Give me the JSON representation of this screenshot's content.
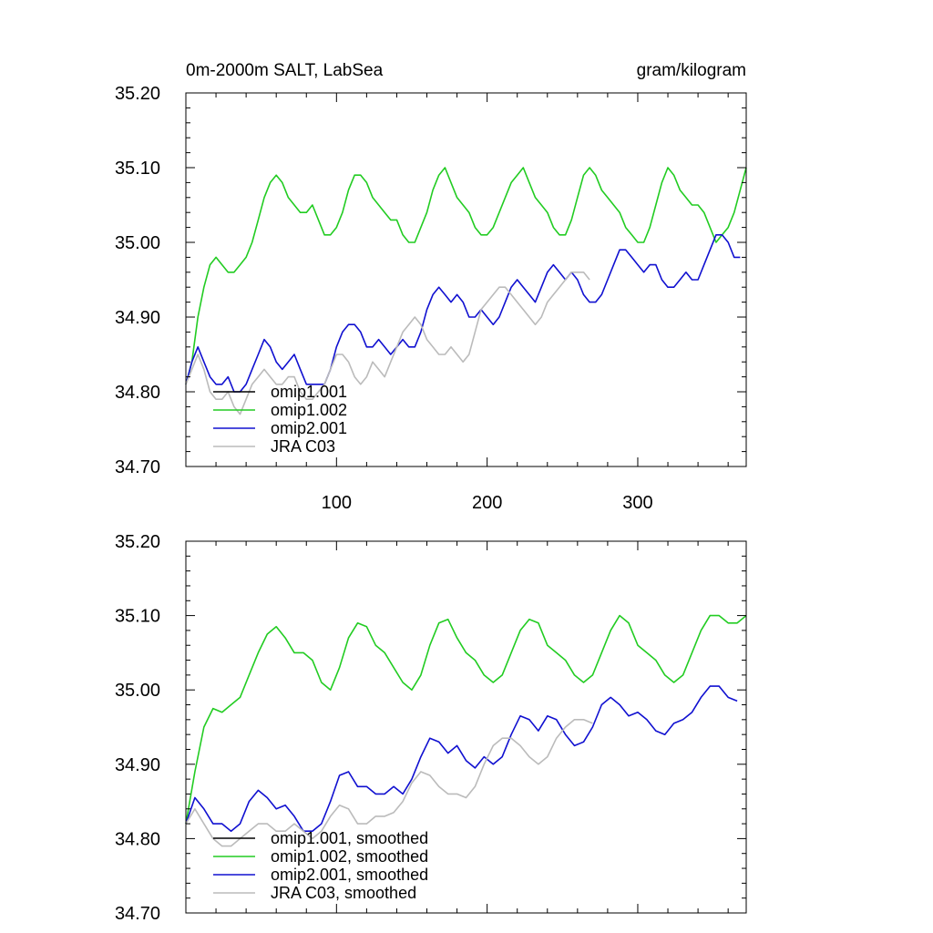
{
  "chart_data": [
    {
      "type": "line",
      "title_left": "0m-2000m SALT, LabSea",
      "title_right": "gram/kilogram",
      "xlim": [
        0,
        372
      ],
      "ylim": [
        34.7,
        35.2
      ],
      "y_ticks": [
        "34.70",
        "34.80",
        "34.90",
        "35.00",
        "35.10",
        "35.20"
      ],
      "x_ticks": [
        {
          "value": 100,
          "label": "100"
        },
        {
          "value": 200,
          "label": "200"
        },
        {
          "value": 300,
          "label": "300"
        }
      ],
      "legend": "bottom-left",
      "series": [
        {
          "name": "omip1.001",
          "color": "#000000",
          "x": [
            0
          ],
          "y": [
            34.8
          ]
        },
        {
          "name": "omip1.002",
          "color": "#22cc22",
          "x": [
            0,
            4,
            8,
            12,
            16,
            20,
            24,
            28,
            32,
            36,
            40,
            44,
            48,
            52,
            56,
            60,
            64,
            68,
            72,
            76,
            80,
            84,
            88,
            92,
            96,
            100,
            104,
            108,
            112,
            116,
            120,
            124,
            128,
            132,
            136,
            140,
            144,
            148,
            152,
            156,
            160,
            164,
            168,
            172,
            176,
            180,
            184,
            188,
            192,
            196,
            200,
            204,
            208,
            212,
            216,
            220,
            224,
            228,
            232,
            236,
            240,
            244,
            248,
            252,
            256,
            260,
            264,
            268,
            272,
            276,
            280,
            284,
            288,
            292,
            296,
            300,
            304,
            308,
            312,
            316,
            320,
            324,
            328,
            332,
            336,
            340,
            344,
            348,
            352,
            356,
            360,
            364,
            368,
            372
          ],
          "y": [
            34.81,
            34.84,
            34.9,
            34.94,
            34.97,
            34.98,
            34.97,
            34.96,
            34.96,
            34.97,
            34.98,
            35.0,
            35.03,
            35.06,
            35.08,
            35.09,
            35.08,
            35.06,
            35.05,
            35.04,
            35.04,
            35.05,
            35.03,
            35.01,
            35.01,
            35.02,
            35.04,
            35.07,
            35.09,
            35.09,
            35.08,
            35.06,
            35.05,
            35.04,
            35.03,
            35.03,
            35.01,
            35.0,
            35.0,
            35.02,
            35.04,
            35.07,
            35.09,
            35.1,
            35.08,
            35.06,
            35.05,
            35.04,
            35.02,
            35.01,
            35.01,
            35.02,
            35.04,
            35.06,
            35.08,
            35.09,
            35.1,
            35.08,
            35.06,
            35.05,
            35.04,
            35.02,
            35.01,
            35.01,
            35.03,
            35.06,
            35.09,
            35.1,
            35.09,
            35.07,
            35.06,
            35.05,
            35.04,
            35.02,
            35.01,
            35.0,
            35.0,
            35.02,
            35.05,
            35.08,
            35.1,
            35.09,
            35.07,
            35.06,
            35.05,
            35.05,
            35.04,
            35.02,
            35.0,
            35.01,
            35.02,
            35.04,
            35.07,
            35.1
          ]
        },
        {
          "name": "omip2.001",
          "color": "#1010d0",
          "x": [
            0,
            4,
            8,
            12,
            16,
            20,
            24,
            28,
            32,
            36,
            40,
            44,
            48,
            52,
            56,
            60,
            64,
            68,
            72,
            76,
            80,
            84,
            88,
            92,
            96,
            100,
            104,
            108,
            112,
            116,
            120,
            124,
            128,
            132,
            136,
            140,
            144,
            148,
            152,
            156,
            160,
            164,
            168,
            172,
            176,
            180,
            184,
            188,
            192,
            196,
            200,
            204,
            208,
            212,
            216,
            220,
            224,
            228,
            232,
            236,
            240,
            244,
            248,
            252,
            256,
            260,
            264,
            268,
            272,
            276,
            280,
            284,
            288,
            292,
            296,
            300,
            304,
            308,
            312,
            316,
            320,
            324,
            328,
            332,
            336,
            340,
            344,
            348,
            352,
            356,
            360,
            364,
            368
          ],
          "y": [
            34.81,
            34.84,
            34.86,
            34.84,
            34.82,
            34.81,
            34.81,
            34.82,
            34.8,
            34.8,
            34.81,
            34.83,
            34.85,
            34.87,
            34.86,
            34.84,
            34.83,
            34.84,
            34.85,
            34.83,
            34.81,
            34.81,
            34.81,
            34.81,
            34.83,
            34.86,
            34.88,
            34.89,
            34.89,
            34.88,
            34.86,
            34.86,
            34.87,
            34.86,
            34.85,
            34.86,
            34.87,
            34.86,
            34.86,
            34.88,
            34.91,
            34.93,
            34.94,
            34.93,
            34.92,
            34.93,
            34.92,
            34.9,
            34.9,
            34.91,
            34.9,
            34.89,
            34.9,
            34.92,
            34.94,
            34.95,
            34.94,
            34.93,
            34.92,
            34.94,
            34.96,
            34.97,
            34.96,
            34.95,
            34.96,
            34.95,
            34.93,
            34.92,
            34.92,
            34.93,
            34.95,
            34.97,
            34.99,
            34.99,
            34.98,
            34.97,
            34.96,
            34.97,
            34.97,
            34.95,
            34.94,
            34.94,
            34.95,
            34.96,
            34.95,
            34.95,
            34.97,
            34.99,
            35.01,
            35.01,
            35.0,
            34.98,
            34.98
          ]
        },
        {
          "name": "JRA C03",
          "color": "#bbbbbb",
          "x": [
            0,
            4,
            8,
            12,
            16,
            20,
            24,
            28,
            32,
            36,
            40,
            44,
            48,
            52,
            56,
            60,
            64,
            68,
            72,
            76,
            80,
            84,
            88,
            92,
            96,
            100,
            104,
            108,
            112,
            116,
            120,
            124,
            128,
            132,
            136,
            140,
            144,
            148,
            152,
            156,
            160,
            164,
            168,
            172,
            176,
            180,
            184,
            188,
            192,
            196,
            200,
            204,
            208,
            212,
            216,
            220,
            224,
            228,
            232,
            236,
            240,
            244,
            248,
            252,
            256,
            260,
            264,
            268
          ],
          "y": [
            34.81,
            34.83,
            34.85,
            34.83,
            34.8,
            34.79,
            34.79,
            34.8,
            34.78,
            34.77,
            34.79,
            34.81,
            34.82,
            34.83,
            34.82,
            34.81,
            34.81,
            34.82,
            34.82,
            34.8,
            34.79,
            34.79,
            34.8,
            34.81,
            34.83,
            34.85,
            34.85,
            34.84,
            34.82,
            34.81,
            34.82,
            34.84,
            34.83,
            34.82,
            34.84,
            34.86,
            34.88,
            34.89,
            34.9,
            34.89,
            34.87,
            34.86,
            34.85,
            34.85,
            34.86,
            34.85,
            34.84,
            34.85,
            34.88,
            34.91,
            34.92,
            34.93,
            34.94,
            34.94,
            34.93,
            34.92,
            34.91,
            34.9,
            34.89,
            34.9,
            34.92,
            34.93,
            34.94,
            34.95,
            34.96,
            34.96,
            34.96,
            34.95
          ]
        }
      ]
    },
    {
      "type": "line",
      "xlim": [
        0,
        372
      ],
      "ylim": [
        34.7,
        35.2
      ],
      "y_ticks": [
        "34.70",
        "34.80",
        "34.90",
        "35.00",
        "35.10",
        "35.20"
      ],
      "legend": "bottom-left",
      "series": [
        {
          "name": "omip1.001, smoothed",
          "color": "#000000",
          "x": [
            0
          ],
          "y": [
            34.82
          ]
        },
        {
          "name": "omip1.002, smoothed",
          "color": "#22cc22",
          "x": [
            0,
            6,
            12,
            18,
            24,
            30,
            36,
            42,
            48,
            54,
            60,
            66,
            72,
            78,
            84,
            90,
            96,
            102,
            108,
            114,
            120,
            126,
            132,
            138,
            144,
            150,
            156,
            162,
            168,
            174,
            180,
            186,
            192,
            198,
            204,
            210,
            216,
            222,
            228,
            234,
            240,
            246,
            252,
            258,
            264,
            270,
            276,
            282,
            288,
            294,
            300,
            306,
            312,
            318,
            324,
            330,
            336,
            342,
            348,
            354,
            360,
            366,
            372
          ],
          "y": [
            34.82,
            34.89,
            34.95,
            34.975,
            34.97,
            34.98,
            34.99,
            35.02,
            35.05,
            35.075,
            35.085,
            35.07,
            35.05,
            35.05,
            35.04,
            35.01,
            35.0,
            35.03,
            35.07,
            35.09,
            35.085,
            35.06,
            35.05,
            35.03,
            35.01,
            35.0,
            35.02,
            35.06,
            35.09,
            35.095,
            35.07,
            35.05,
            35.04,
            35.02,
            35.01,
            35.02,
            35.05,
            35.08,
            35.095,
            35.09,
            35.06,
            35.05,
            35.04,
            35.02,
            35.01,
            35.02,
            35.05,
            35.08,
            35.1,
            35.09,
            35.06,
            35.05,
            35.04,
            35.02,
            35.01,
            35.02,
            35.05,
            35.08,
            35.1,
            35.1,
            35.09,
            35.09,
            35.1
          ]
        },
        {
          "name": "omip2.001, smoothed",
          "color": "#1010d0",
          "x": [
            0,
            6,
            12,
            18,
            24,
            30,
            36,
            42,
            48,
            54,
            60,
            66,
            72,
            78,
            84,
            90,
            96,
            102,
            108,
            114,
            120,
            126,
            132,
            138,
            144,
            150,
            156,
            162,
            168,
            174,
            180,
            186,
            192,
            198,
            204,
            210,
            216,
            222,
            228,
            234,
            240,
            246,
            252,
            258,
            264,
            270,
            276,
            282,
            288,
            294,
            300,
            306,
            312,
            318,
            324,
            330,
            336,
            342,
            348,
            354,
            360,
            366
          ],
          "y": [
            34.82,
            34.855,
            34.84,
            34.82,
            34.82,
            34.81,
            34.82,
            34.85,
            34.865,
            34.855,
            34.84,
            34.845,
            34.83,
            34.81,
            34.81,
            34.82,
            34.85,
            34.885,
            34.89,
            34.87,
            34.87,
            34.86,
            34.86,
            34.87,
            34.86,
            34.88,
            34.91,
            34.935,
            34.93,
            34.915,
            34.925,
            34.905,
            34.895,
            34.91,
            34.9,
            34.91,
            34.94,
            34.965,
            34.96,
            34.945,
            34.965,
            34.96,
            34.94,
            34.925,
            34.93,
            34.95,
            34.98,
            34.99,
            34.98,
            34.965,
            34.97,
            34.96,
            34.945,
            34.94,
            34.955,
            34.96,
            34.97,
            34.99,
            35.005,
            35.005,
            34.99,
            34.985
          ]
        },
        {
          "name": "JRA C03, smoothed",
          "color": "#bbbbbb",
          "x": [
            0,
            6,
            12,
            18,
            24,
            30,
            36,
            42,
            48,
            54,
            60,
            66,
            72,
            78,
            84,
            90,
            96,
            102,
            108,
            114,
            120,
            126,
            132,
            138,
            144,
            150,
            156,
            162,
            168,
            174,
            180,
            186,
            192,
            198,
            204,
            210,
            216,
            222,
            228,
            234,
            240,
            246,
            252,
            258,
            264,
            270
          ],
          "y": [
            34.82,
            34.84,
            34.82,
            34.8,
            34.79,
            34.79,
            34.8,
            34.81,
            34.82,
            34.82,
            34.81,
            34.81,
            34.82,
            34.81,
            34.8,
            34.81,
            34.83,
            34.845,
            34.84,
            34.82,
            34.82,
            34.83,
            34.83,
            34.835,
            34.85,
            34.875,
            34.89,
            34.885,
            34.87,
            34.86,
            34.86,
            34.855,
            34.87,
            34.9,
            34.925,
            34.935,
            34.935,
            34.925,
            34.91,
            34.9,
            34.91,
            34.935,
            34.95,
            34.96,
            34.96,
            34.955
          ]
        }
      ]
    }
  ]
}
